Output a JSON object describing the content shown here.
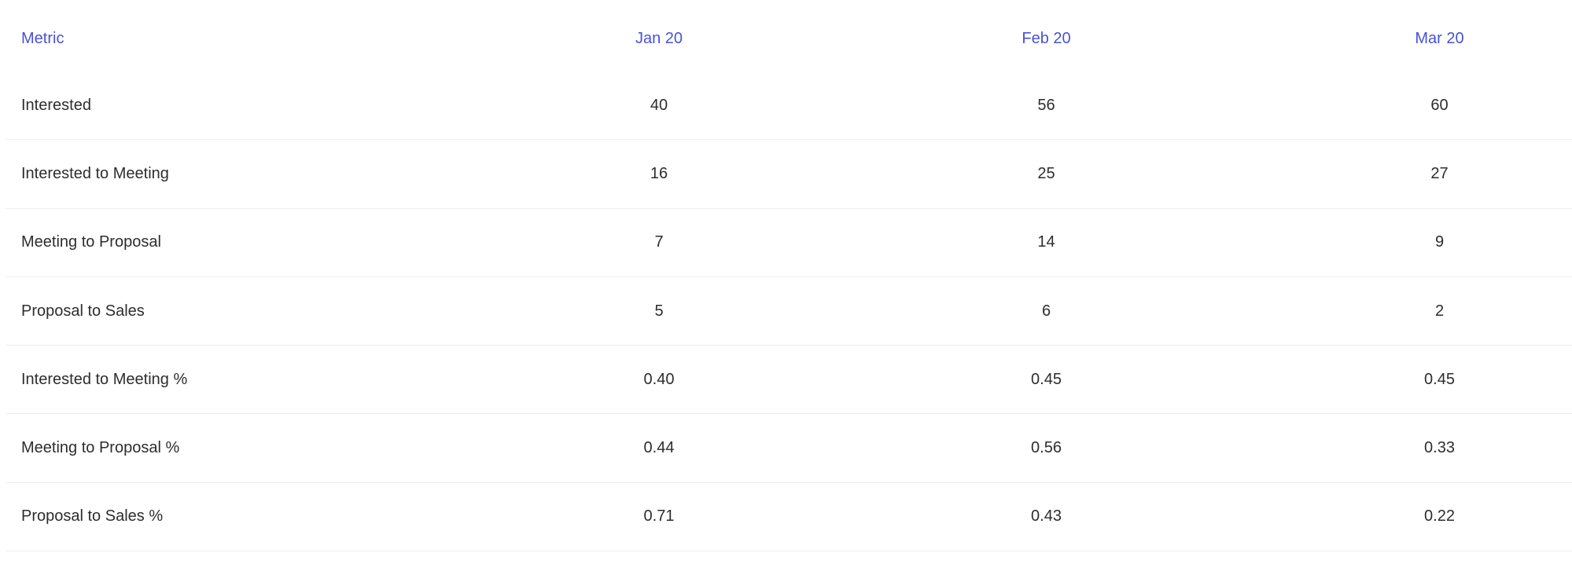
{
  "colors": {
    "header_text": "#4A51D6",
    "body_text": "#2D2D2D",
    "divider": "#EDEDED",
    "background": "#FFFFFF"
  },
  "table": {
    "columns": [
      "Metric",
      "Jan 20",
      "Feb 20",
      "Mar 20"
    ],
    "rows": [
      {
        "metric": "Interested",
        "values": [
          "40",
          "56",
          "60"
        ]
      },
      {
        "metric": "Interested to Meeting",
        "values": [
          "16",
          "25",
          "27"
        ]
      },
      {
        "metric": "Meeting to Proposal",
        "values": [
          "7",
          "14",
          "9"
        ]
      },
      {
        "metric": "Proposal to Sales",
        "values": [
          "5",
          "6",
          "2"
        ]
      },
      {
        "metric": "Interested to Meeting %",
        "values": [
          "0.40",
          "0.45",
          "0.45"
        ]
      },
      {
        "metric": "Meeting to Proposal %",
        "values": [
          "0.44",
          "0.56",
          "0.33"
        ]
      },
      {
        "metric": "Proposal to Sales %",
        "values": [
          "0.71",
          "0.43",
          "0.22"
        ]
      }
    ]
  }
}
